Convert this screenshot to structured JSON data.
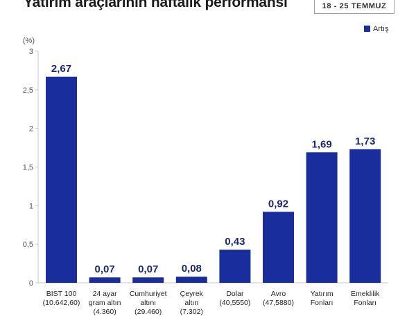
{
  "title": "Yatırım araçlarının haftalık performansı",
  "date_range": "18 - 25 TEMMUZ",
  "chart_data": {
    "type": "bar",
    "y_unit": "(%)",
    "legend": [
      {
        "name": "Artış",
        "color": "#1a2d9c"
      }
    ],
    "legend_position": "top-right",
    "ylim": [
      0,
      3
    ],
    "yticks": [
      "0",
      "0,5",
      "1",
      "1,5",
      "2",
      "2,5",
      "3"
    ],
    "grid": false,
    "categories": [
      {
        "lines": [
          "BIST 100",
          "(10.642,60)"
        ]
      },
      {
        "lines": [
          "24 ayar",
          "gram altın",
          "(4.360)"
        ]
      },
      {
        "lines": [
          "Cumhuriyet",
          "altını",
          "(29.460)"
        ]
      },
      {
        "lines": [
          "Çeyrek",
          "altın",
          "(7.302)"
        ]
      },
      {
        "lines": [
          "Dolar",
          "(40,5550)"
        ]
      },
      {
        "lines": [
          "Avro",
          "(47,5880)"
        ]
      },
      {
        "lines": [
          "Yatırım",
          "Fonları"
        ]
      },
      {
        "lines": [
          "Emeklilik",
          "Fonları"
        ]
      }
    ],
    "values": [
      2.67,
      0.07,
      0.07,
      0.08,
      0.43,
      0.92,
      1.69,
      1.73
    ],
    "value_labels": [
      "2,67",
      "0,07",
      "0,07",
      "0,08",
      "0,43",
      "0,92",
      "1,69",
      "1,73"
    ],
    "bar_color": "#1a2d9c"
  }
}
